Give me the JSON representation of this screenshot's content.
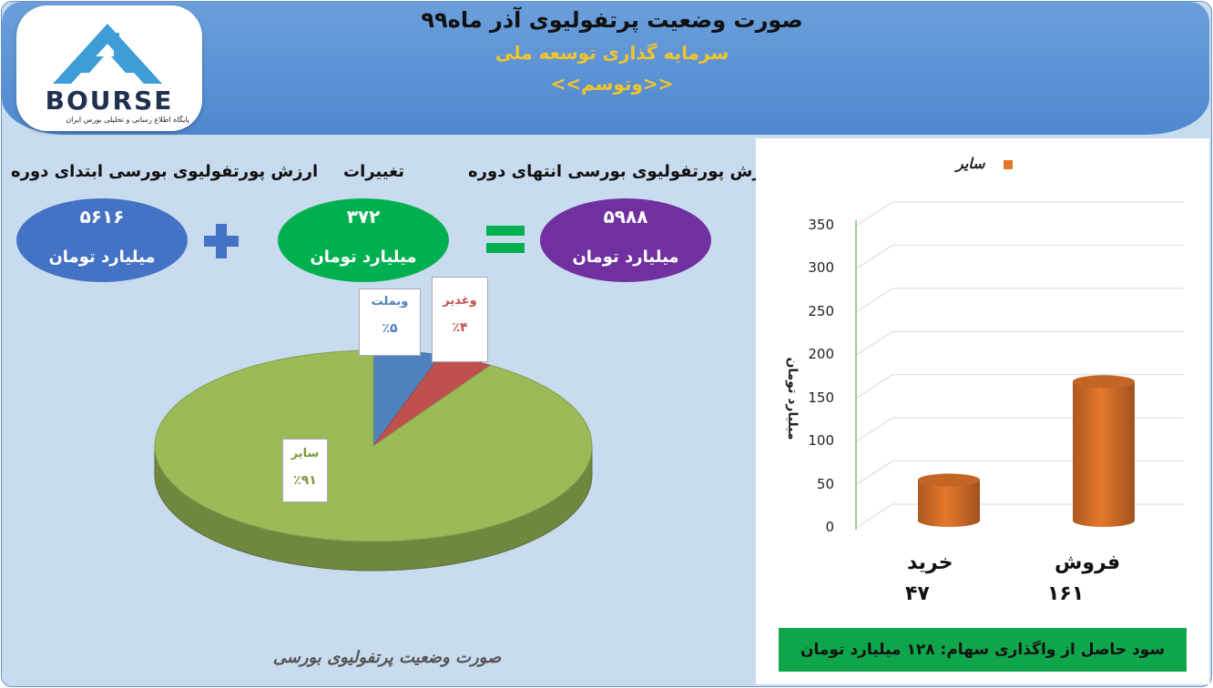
{
  "header": {
    "title": "صورت وضعیت پرتفولیوی آذر ماه۹۹",
    "company": "سرمایه گذاری توسعه ملی",
    "symbol": "<<وتوسم>>"
  },
  "logo": {
    "text": "BOURSE",
    "subtitle": "پایگاه اطلاع رسانی و تحلیلی بورس ایران"
  },
  "summary": {
    "start_label": "ارزش پورتفولیوی بورسی ابتدای دوره",
    "start_value": "۵۶۱۶",
    "change_label": "تغییرات",
    "change_value": "۳۷۲",
    "end_label": "ارزش پورتفولیوی بورسی انتهای دوره",
    "end_value": "۵۹۸۸",
    "unit": "میلیارد تومان",
    "colors": {
      "start": "#4472c4",
      "change": "#00b050",
      "end": "#7030a0",
      "operator": "#4472c4",
      "equals": "#00b050"
    }
  },
  "pie": {
    "caption": "صورت وضعیت پرتفولیوی بورسی",
    "labels": [
      {
        "name": "وبملت",
        "pct": "٪۵",
        "color": "#4f81bd"
      },
      {
        "name": "وغدیر",
        "pct": "٪۴",
        "color": "#c0504d"
      },
      {
        "name": "سایر",
        "pct": "٪۹۱",
        "color": "#9bbb59"
      }
    ]
  },
  "chart_data": [
    {
      "type": "pie",
      "categories": [
        "وبملت",
        "وغدیر",
        "سایر"
      ],
      "values": [
        5,
        4,
        91
      ],
      "colors": [
        "#4f81bd",
        "#c0504d",
        "#9bbb59"
      ],
      "title": "",
      "style": "3d"
    },
    {
      "type": "bar",
      "style": "3d-cylinder",
      "categories": [
        "خرید",
        "فروش"
      ],
      "value_labels": [
        "۴۷",
        "۱۶۱"
      ],
      "series": [
        {
          "name": "سایر",
          "values": [
            47,
            161
          ],
          "color": "#e5772b"
        }
      ],
      "ylabel": "میلیارد تومان",
      "ylim": [
        0,
        350
      ],
      "yticks": [
        0,
        50,
        100,
        150,
        200,
        250,
        300,
        350
      ],
      "legend": "top",
      "grid": true
    }
  ],
  "profit": {
    "text": "سود حاصل از واگذاری سهام: ۱۲۸  میلیارد تومان"
  }
}
